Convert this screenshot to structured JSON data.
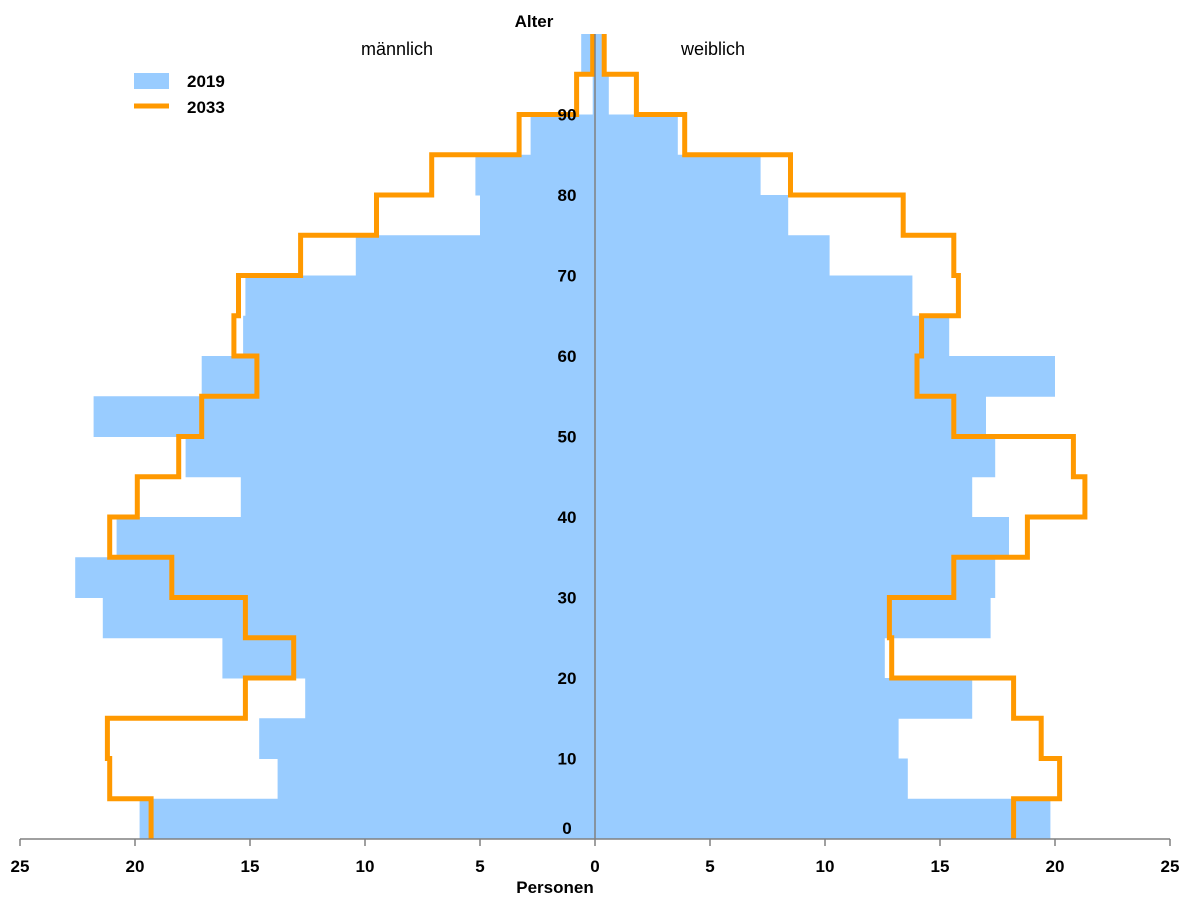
{
  "chart_data": {
    "type": "bar",
    "subtype": "population-pyramid",
    "y_axis_title": "Alter",
    "x_axis_title": "Personen",
    "left_label": "männlich",
    "right_label": "weiblich",
    "x_ticks": [
      "25",
      "20",
      "15",
      "10",
      "5",
      "0",
      "5",
      "10",
      "15",
      "20",
      "25"
    ],
    "x_tick_values": [
      -25,
      -20,
      -15,
      -10,
      -5,
      0,
      5,
      10,
      15,
      20,
      25
    ],
    "xlim": [
      -25,
      25
    ],
    "age_ticks": [
      0,
      10,
      20,
      30,
      40,
      50,
      60,
      70,
      80,
      90
    ],
    "age_range": [
      0,
      99
    ],
    "age_groups": [
      [
        0,
        4
      ],
      [
        5,
        9
      ],
      [
        10,
        14
      ],
      [
        15,
        19
      ],
      [
        20,
        24
      ],
      [
        25,
        29
      ],
      [
        30,
        34
      ],
      [
        35,
        39
      ],
      [
        40,
        44
      ],
      [
        45,
        49
      ],
      [
        50,
        54
      ],
      [
        55,
        59
      ],
      [
        60,
        64
      ],
      [
        65,
        69
      ],
      [
        70,
        74
      ],
      [
        75,
        79
      ],
      [
        80,
        84
      ],
      [
        85,
        89
      ],
      [
        90,
        94
      ],
      [
        95,
        99
      ]
    ],
    "grid": false,
    "legend_position": "top-left",
    "legend": [
      {
        "name": "2019",
        "style": "bar",
        "color": "#99CCFF"
      },
      {
        "name": "2033",
        "style": "line",
        "color": "#FF9900"
      }
    ],
    "series": [
      {
        "name": "2019",
        "style": "bar",
        "color": "#99CCFF",
        "male": [
          19.8,
          13.8,
          14.6,
          12.6,
          16.2,
          21.4,
          22.6,
          20.8,
          15.4,
          17.8,
          21.8,
          17.1,
          15.3,
          15.2,
          10.4,
          5.0,
          5.2,
          2.8,
          0.1,
          0.6
        ],
        "female": [
          19.8,
          13.6,
          13.2,
          16.4,
          12.6,
          17.2,
          17.4,
          18.0,
          16.4,
          17.4,
          17.0,
          20.0,
          15.4,
          13.8,
          10.2,
          8.4,
          7.2,
          3.6,
          0.6,
          0.3
        ]
      },
      {
        "name": "2033",
        "style": "step-line",
        "color": "#FF9900",
        "male": [
          19.3,
          21.1,
          21.2,
          15.2,
          13.1,
          15.2,
          18.4,
          21.1,
          19.9,
          18.1,
          17.1,
          14.7,
          15.7,
          15.5,
          12.8,
          9.5,
          7.1,
          3.3,
          0.8,
          0.1
        ],
        "female": [
          18.2,
          20.2,
          19.4,
          18.2,
          12.9,
          12.8,
          15.6,
          18.8,
          21.3,
          20.8,
          15.6,
          14.0,
          14.2,
          15.8,
          15.6,
          13.4,
          8.5,
          3.9,
          1.8,
          0.4
        ]
      }
    ]
  }
}
